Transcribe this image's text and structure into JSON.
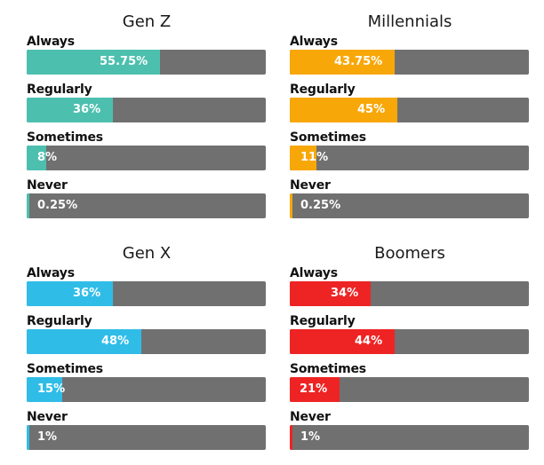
{
  "chart_data": [
    {
      "type": "bar",
      "orientation": "horizontal",
      "title": "Gen Z",
      "color": "#4dbfae",
      "categories": [
        "Always",
        "Regularly",
        "Sometimes",
        "Never"
      ],
      "values": [
        55.75,
        36,
        8,
        0.25
      ],
      "labels": [
        "55.75%",
        "36%",
        "8%",
        "0.25%"
      ],
      "xlim": [
        0,
        100
      ]
    },
    {
      "type": "bar",
      "orientation": "horizontal",
      "title": "Millennials",
      "color": "#f8a708",
      "categories": [
        "Always",
        "Regularly",
        "Sometimes",
        "Never"
      ],
      "values": [
        43.75,
        45,
        11,
        0.25
      ],
      "labels": [
        "43.75%",
        "45%",
        "11%",
        "0.25%"
      ],
      "xlim": [
        0,
        100
      ]
    },
    {
      "type": "bar",
      "orientation": "horizontal",
      "title": "Gen X",
      "color": "#2fbde8",
      "categories": [
        "Always",
        "Regularly",
        "Sometimes",
        "Never"
      ],
      "values": [
        36,
        48,
        15,
        1
      ],
      "labels": [
        "36%",
        "48%",
        "15%",
        "1%"
      ],
      "xlim": [
        0,
        100
      ]
    },
    {
      "type": "bar",
      "orientation": "horizontal",
      "title": "Boomers",
      "color": "#ee2424",
      "categories": [
        "Always",
        "Regularly",
        "Sometimes",
        "Never"
      ],
      "values": [
        34,
        44,
        21,
        1
      ],
      "labels": [
        "34%",
        "44%",
        "21%",
        "1%"
      ],
      "xlim": [
        0,
        100
      ]
    }
  ],
  "track_color": "#707070"
}
